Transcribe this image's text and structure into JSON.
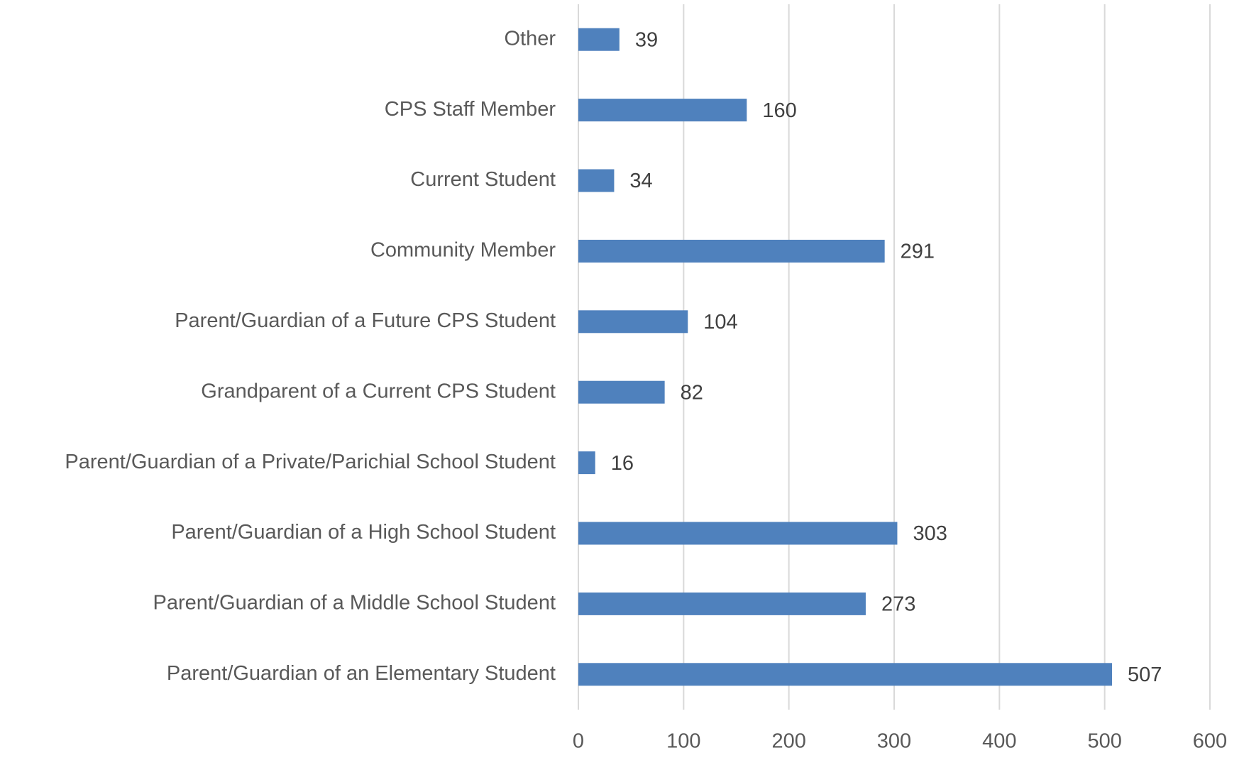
{
  "chart_data": {
    "type": "bar",
    "orientation": "horizontal",
    "categories": [
      "Other",
      "CPS Staff Member",
      "Current Student",
      "Community Member",
      "Parent/Guardian of a Future CPS Student",
      "Grandparent of a Current CPS Student",
      "Parent/Guardian of a Private/Parichial School Student",
      "Parent/Guardian of a High School Student",
      "Parent/Guardian of a Middle School Student",
      "Parent/Guardian of an Elementary Student"
    ],
    "values": [
      39,
      160,
      34,
      291,
      104,
      82,
      16,
      303,
      273,
      507
    ],
    "color": "#4f81bd",
    "xlim": [
      0,
      600
    ],
    "xticks": [
      0,
      100,
      200,
      300,
      400,
      500,
      600
    ],
    "grid": true
  }
}
